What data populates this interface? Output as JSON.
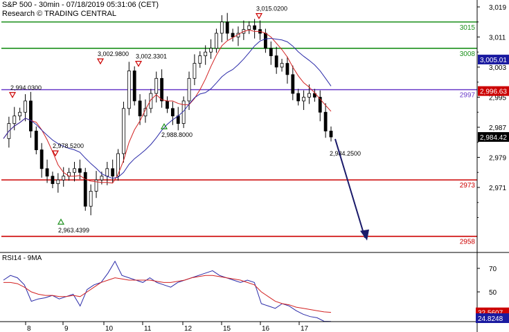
{
  "header": {
    "line1": "S&P 500 - 30min - 07/18/2019 05:31:06 (CET)",
    "line2": "Research © TRADING CENTRAL"
  },
  "rsi_panel": {
    "label": "RSI14 - 9MA"
  },
  "chart_data": [
    {
      "type": "line",
      "title": "S&P 500 - 30min - 07/18/2019 05:31:06 (CET)",
      "subtitle": "Research © TRADING CENTRAL",
      "xlabel": "",
      "ylabel": "",
      "x_ticks": [
        "8",
        "9",
        "10",
        "11",
        "12",
        "15",
        "16",
        "17"
      ],
      "y_ticks": [
        2971,
        2979,
        2987,
        2995,
        3003,
        3011,
        3019
      ],
      "ylim": [
        2955,
        3020
      ],
      "grid": false,
      "levels": [
        {
          "label": "3015",
          "value": 3015,
          "color": "#1a8f1a"
        },
        {
          "label": "3008",
          "value": 3008,
          "color": "#1a8f1a"
        },
        {
          "label": "2997",
          "value": 2997,
          "color": "#6a3ac8"
        },
        {
          "label": "2973",
          "value": 2973,
          "color": "#cc0000"
        },
        {
          "label": "2958",
          "value": 2958,
          "color": "#cc0000"
        }
      ],
      "price_tags": [
        {
          "label": "3,005.01",
          "value": 3005.01,
          "color": "#1a1aa0"
        },
        {
          "label": "2,996.63",
          "value": 2996.63,
          "color": "#cc0000"
        },
        {
          "label": "2,984.42",
          "value": 2984.42,
          "color": "#000000"
        }
      ],
      "annotations": [
        {
          "label": "2,994.0300",
          "x": "8",
          "value": 2994.03,
          "marker": "top"
        },
        {
          "label": "2,978.5200",
          "x": "9",
          "value": 2978.52,
          "marker": "top"
        },
        {
          "label": "2,963.4399",
          "x": "9",
          "value": 2963.44,
          "marker": "bottom"
        },
        {
          "label": "3,002.9800",
          "x": "10",
          "value": 3002.98,
          "marker": "top"
        },
        {
          "label": "3,002.3301",
          "x": "11",
          "value": 3002.33,
          "marker": "top"
        },
        {
          "label": "2,988.8000",
          "x": "11",
          "value": 2988.8,
          "marker": "bottom"
        },
        {
          "label": "3,015.0200",
          "x": "16",
          "value": 3015.02,
          "marker": "top"
        },
        {
          "label": "2,984.2500",
          "x": "17",
          "value": 2984.25,
          "marker": "none"
        }
      ],
      "series": [
        {
          "values": [
            2984,
            2988,
            2990,
            2991,
            2994,
            2986,
            2981,
            2976,
            2974,
            2972,
            2973,
            2974,
            2975,
            2976,
            2975,
            2966,
            2970,
            2973,
            2974,
            2976,
            2974,
            2980,
            2992,
            3002,
            2994,
            2990,
            2992,
            2996,
            3000,
            2994,
            2992,
            2990,
            2988,
            2994,
            3000,
            3004,
            3006,
            3007,
            3008,
            3012,
            3015,
            3012,
            3011,
            3012,
            3013,
            3014,
            3013,
            3012,
            3008,
            3006,
            3003,
            3004,
            3001,
            2996,
            2994,
            2995,
            2996,
            2995,
            2991,
            2986,
            2984.42
          ]
        }
      ],
      "forecast": {
        "from": 2984.25,
        "to": 2958,
        "direction": "down"
      }
    },
    {
      "type": "line",
      "title": "RSI14 - 9MA",
      "y_ticks": [
        50,
        70
      ],
      "ylim": [
        20,
        85
      ],
      "price_tags": [
        {
          "label": "32.5607",
          "value": 32.5607,
          "color": "#cc0000"
        },
        {
          "label": "24.8248",
          "value": 24.8248,
          "color": "#1a1aa0"
        }
      ],
      "series": [
        {
          "values": [
            60,
            64,
            62,
            56,
            42,
            44,
            45,
            47,
            44,
            46,
            48,
            38,
            52,
            56,
            58,
            66,
            76,
            64,
            62,
            60,
            58,
            62,
            58,
            56,
            54,
            58,
            60,
            62,
            64,
            66,
            68,
            64,
            62,
            60,
            58,
            60,
            58,
            40,
            38,
            36,
            40,
            38,
            34,
            31,
            29,
            28,
            25,
            24.82
          ]
        },
        {
          "values": [
            58,
            58,
            57,
            54,
            50,
            48,
            47,
            47,
            46,
            46,
            47,
            46,
            50,
            54,
            58,
            60,
            62,
            61,
            60,
            60,
            60,
            60,
            59,
            58,
            58,
            59,
            60,
            62,
            63,
            64,
            64,
            63,
            62,
            61,
            60,
            58,
            56,
            50,
            46,
            42,
            40,
            39,
            37,
            36,
            35,
            34,
            33,
            32.56
          ]
        }
      ]
    }
  ]
}
